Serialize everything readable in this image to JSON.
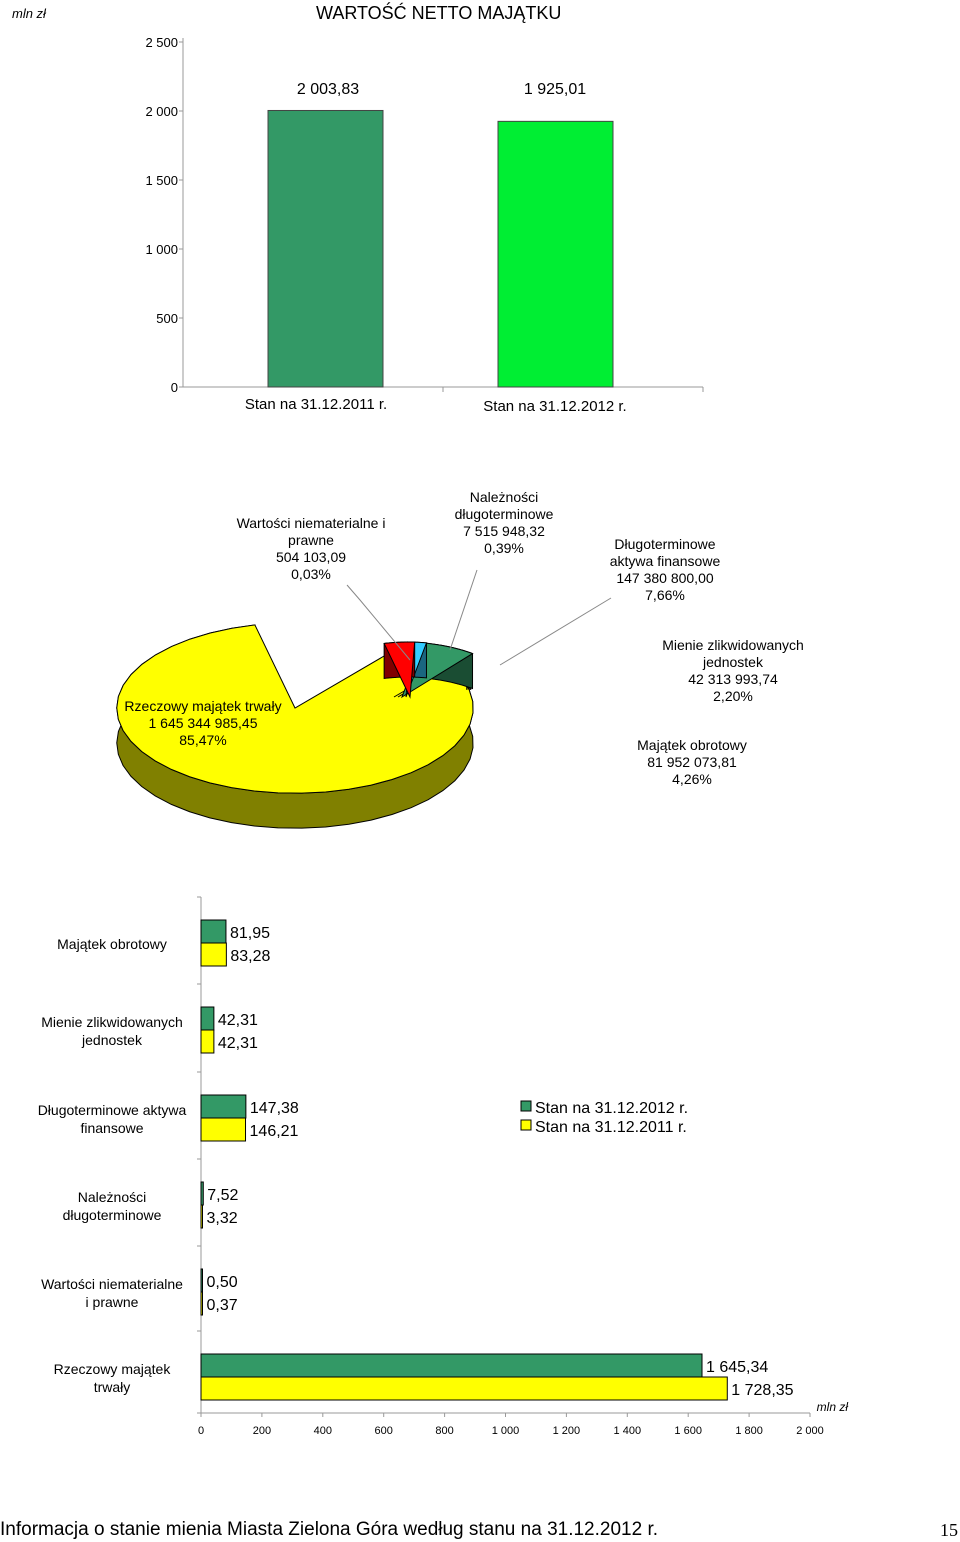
{
  "chart_data": [
    {
      "type": "bar",
      "title": "WARTOŚĆ NETTO MAJĄTKU",
      "unit_label": "mln zł",
      "categories": [
        "Stan na 31.12.2011 r.",
        "Stan na 31.12.2012 r."
      ],
      "values": [
        2003.83,
        1925.01
      ],
      "value_labels": [
        "2 003,83",
        "1 925,01"
      ],
      "colors": [
        "#339966",
        "#00ee33"
      ],
      "ylim": [
        0,
        2500
      ],
      "yticks": [
        0,
        500,
        1000,
        1500,
        2000,
        2500
      ],
      "ytick_labels": [
        "0",
        "500",
        "1 000",
        "1 500",
        "2 000",
        "2 500"
      ],
      "grid": false
    },
    {
      "type": "pie",
      "slices": [
        {
          "label": [
            "Rzeczowy majątek trwały",
            "1 645 344 985,45",
            "85,47%"
          ],
          "value": 85.47,
          "color": "#ffff00"
        },
        {
          "label": [
            "Wartości niematerialne i",
            "prawne",
            "504 103,09",
            "0,03%"
          ],
          "value": 0.03,
          "color": "#cc9966"
        },
        {
          "label": [
            "Należności",
            "długoterminowe",
            "7 515 948,32",
            "0,39%"
          ],
          "value": 0.39,
          "color": "#cc9999"
        },
        {
          "label": [
            "Długoterminowe",
            "aktywa finansowe",
            "147 380 800,00",
            "7,66%"
          ],
          "value": 7.66,
          "color": "#339966"
        },
        {
          "label": [
            "Mienie zlikwidowanych",
            "jednostek",
            "42 313 993,74",
            "2,20%"
          ],
          "value": 2.2,
          "color": "#33ccff"
        },
        {
          "label": [
            "Majątek obrotowy",
            "81 952 073,81",
            "4,26%"
          ],
          "value": 4.26,
          "color": "#ff0000"
        }
      ]
    },
    {
      "type": "bar",
      "orientation": "horizontal",
      "unit_label": "mln zł",
      "categories": [
        [
          "Majątek obrotowy"
        ],
        [
          "Mienie zlikwidowanych",
          "jednostek"
        ],
        [
          "Długoterminowe aktywa",
          "finansowe"
        ],
        [
          "Należności",
          "długoterminowe"
        ],
        [
          "Wartości niematerialne",
          "i prawne"
        ],
        [
          "Rzeczowy majątek",
          "trwały"
        ]
      ],
      "series": [
        {
          "name": "Stan na 31.12.2012 r.",
          "color": "#339966",
          "values": [
            81.95,
            42.31,
            147.38,
            7.52,
            0.5,
            1645.34
          ],
          "value_labels": [
            "81,95",
            "42,31",
            "147,38",
            "7,52",
            "0,50",
            "1 645,34"
          ]
        },
        {
          "name": "Stan na 31.12.2011 r.",
          "color": "#ffff00",
          "values": [
            83.28,
            42.31,
            146.21,
            3.32,
            0.37,
            1728.35
          ],
          "value_labels": [
            "83,28",
            "42,31",
            "146,21",
            "3,32",
            "0,37",
            "1 728,35"
          ]
        }
      ],
      "xlim": [
        0,
        2000
      ],
      "xticks": [
        0,
        200,
        400,
        600,
        800,
        1000,
        1200,
        1400,
        1600,
        1800,
        2000
      ],
      "xtick_labels": [
        "0",
        "200",
        "400",
        "600",
        "800",
        "1 000",
        "1 200",
        "1 400",
        "1 600",
        "1 800",
        "2 000"
      ],
      "legend": "right"
    }
  ],
  "footer": {
    "text": "Informacja o stanie mienia Miasta Zielona Góra według stanu na 31.12.2012 r.",
    "page_number": "15"
  }
}
